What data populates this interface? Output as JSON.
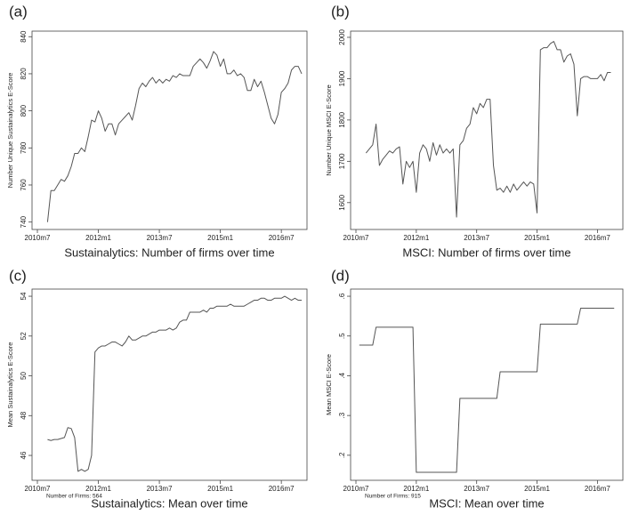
{
  "chart_data": [
    {
      "type": "line",
      "panel_label": "(a)",
      "title": "Sustainalytics: Number of firms over time",
      "y_label": "Number Unique Sustainalytics E-Score",
      "color": "#555555",
      "categories": [
        "2010m7",
        null,
        null,
        null,
        null,
        null,
        null,
        null,
        null,
        null,
        null,
        null,
        null,
        null,
        null,
        null,
        null,
        null,
        "2012m1",
        null,
        null,
        null,
        null,
        null,
        null,
        null,
        null,
        null,
        null,
        null,
        null,
        null,
        null,
        null,
        null,
        null,
        "2013m7",
        null,
        null,
        null,
        null,
        null,
        null,
        null,
        null,
        null,
        null,
        null,
        null,
        null,
        null,
        null,
        null,
        null,
        "2015m1",
        null,
        null,
        null,
        null,
        null,
        null,
        null,
        null,
        null,
        null,
        null,
        null,
        null,
        null,
        null,
        null,
        null,
        "2016m7",
        null,
        null,
        null,
        null,
        null,
        null
      ],
      "values": [
        null,
        null,
        null,
        740,
        757,
        757,
        760,
        763,
        762,
        765,
        770,
        777,
        777,
        780,
        778,
        786,
        795,
        794,
        800,
        796,
        789,
        793,
        793,
        787,
        793,
        795,
        797,
        799,
        795,
        803,
        812,
        815,
        813,
        816,
        818,
        815,
        817,
        815,
        817,
        816,
        819,
        818,
        820,
        819,
        819,
        819,
        824,
        826,
        828,
        826,
        823,
        827,
        832,
        830,
        824,
        828,
        820,
        820,
        822,
        819,
        820,
        818,
        811,
        811,
        817,
        813,
        816,
        810,
        803,
        796,
        793,
        798,
        810,
        812,
        815,
        822,
        824,
        824,
        820
      ],
      "ylim": [
        736,
        843
      ],
      "yticks": [
        740,
        760,
        780,
        800,
        820,
        840
      ]
    },
    {
      "type": "line",
      "panel_label": "(b)",
      "title": "MSCI: Number of firms over time",
      "y_label": "Number Unique MSCI E-Score",
      "color": "#555555",
      "categories": [
        "2010m7",
        null,
        null,
        null,
        null,
        null,
        null,
        null,
        null,
        null,
        null,
        null,
        null,
        null,
        null,
        null,
        null,
        null,
        "2012m1",
        null,
        null,
        null,
        null,
        null,
        null,
        null,
        null,
        null,
        null,
        null,
        null,
        null,
        null,
        null,
        null,
        null,
        "2013m7",
        null,
        null,
        null,
        null,
        null,
        null,
        null,
        null,
        null,
        null,
        null,
        null,
        null,
        null,
        null,
        null,
        null,
        "2015m1",
        null,
        null,
        null,
        null,
        null,
        null,
        null,
        null,
        null,
        null,
        null,
        null,
        null,
        null,
        null,
        null,
        null,
        "2016m7",
        null,
        null,
        null,
        null,
        null,
        null
      ],
      "values": [
        null,
        null,
        null,
        1720,
        1730,
        1740,
        1790,
        1690,
        1705,
        1715,
        1725,
        1720,
        1730,
        1735,
        1645,
        1700,
        1685,
        1700,
        1625,
        1720,
        1740,
        1730,
        1700,
        1745,
        1715,
        1740,
        1720,
        1730,
        1720,
        1730,
        1565,
        1740,
        1750,
        1780,
        1790,
        1830,
        1815,
        1840,
        1830,
        1850,
        1850,
        1690,
        1630,
        1635,
        1625,
        1640,
        1625,
        1645,
        1630,
        1640,
        1650,
        1640,
        1650,
        1645,
        1575,
        1970,
        1975,
        1975,
        1985,
        1990,
        1970,
        1970,
        1940,
        1955,
        1960,
        1935,
        1810,
        1900,
        1905,
        1905,
        1900,
        1900,
        1900,
        1910,
        1895,
        1915,
        1915,
        null,
        null
      ],
      "ylim": [
        1535,
        2015
      ],
      "yticks": [
        1600,
        1700,
        1800,
        1900,
        2000
      ]
    },
    {
      "type": "line",
      "panel_label": "(c)",
      "title": "Sustainalytics: Mean over time",
      "y_label": "Mean Sustainalytics E-Score",
      "note": "Number of Firms: 564",
      "color": "#555555",
      "categories": [
        "2010m7",
        null,
        null,
        null,
        null,
        null,
        null,
        null,
        null,
        null,
        null,
        null,
        null,
        null,
        null,
        null,
        null,
        null,
        "2012m1",
        null,
        null,
        null,
        null,
        null,
        null,
        null,
        null,
        null,
        null,
        null,
        null,
        null,
        null,
        null,
        null,
        null,
        "2013m7",
        null,
        null,
        null,
        null,
        null,
        null,
        null,
        null,
        null,
        null,
        null,
        null,
        null,
        null,
        null,
        null,
        null,
        "2015m1",
        null,
        null,
        null,
        null,
        null,
        null,
        null,
        null,
        null,
        null,
        null,
        null,
        null,
        null,
        null,
        null,
        null,
        "2016m7",
        null,
        null,
        null,
        null,
        null,
        null
      ],
      "values": [
        null,
        null,
        null,
        46.8,
        46.75,
        46.8,
        46.8,
        46.85,
        46.9,
        47.4,
        47.35,
        46.9,
        45.2,
        45.3,
        45.2,
        45.3,
        46.0,
        51.2,
        51.4,
        51.5,
        51.5,
        51.6,
        51.7,
        51.7,
        51.6,
        51.5,
        51.7,
        52.0,
        51.8,
        51.8,
        51.9,
        52.0,
        52.0,
        52.1,
        52.2,
        52.2,
        52.3,
        52.3,
        52.3,
        52.4,
        52.3,
        52.4,
        52.7,
        52.8,
        52.8,
        53.2,
        53.2,
        53.2,
        53.2,
        53.3,
        53.2,
        53.4,
        53.4,
        53.5,
        53.5,
        53.5,
        53.5,
        53.6,
        53.5,
        53.5,
        53.5,
        53.5,
        53.6,
        53.7,
        53.8,
        53.8,
        53.9,
        53.9,
        53.8,
        53.8,
        53.9,
        53.9,
        53.9,
        54.0,
        53.9,
        53.8,
        53.9,
        53.8,
        53.8
      ],
      "ylim": [
        44.75,
        54.36
      ],
      "yticks": [
        46,
        48,
        50,
        52,
        54
      ]
    },
    {
      "type": "line",
      "panel_label": "(d)",
      "title": "MSCI: Mean over time",
      "y_label": "Mean MSCI E-Score",
      "note": "Number of Firms: 915",
      "color": "#555555",
      "categories": [
        "2010m7",
        null,
        null,
        null,
        null,
        null,
        null,
        null,
        null,
        null,
        null,
        null,
        null,
        null,
        null,
        null,
        null,
        null,
        "2012m1",
        null,
        null,
        null,
        null,
        null,
        null,
        null,
        null,
        null,
        null,
        null,
        null,
        null,
        null,
        null,
        null,
        null,
        "2013m7",
        null,
        null,
        null,
        null,
        null,
        null,
        null,
        null,
        null,
        null,
        null,
        null,
        null,
        null,
        null,
        null,
        null,
        "2015m1",
        null,
        null,
        null,
        null,
        null,
        null,
        null,
        null,
        null,
        null,
        null,
        null,
        null,
        null,
        null,
        null,
        null,
        "2016m7",
        null,
        null,
        null,
        null,
        null,
        null
      ],
      "values": [
        null,
        0.477,
        0.477,
        0.477,
        0.477,
        0.477,
        0.522,
        0.522,
        0.522,
        0.522,
        0.522,
        0.522,
        0.522,
        0.522,
        0.522,
        0.522,
        0.522,
        0.522,
        0.157,
        0.157,
        0.157,
        0.157,
        0.157,
        0.157,
        0.157,
        0.157,
        0.157,
        0.157,
        0.157,
        0.157,
        0.157,
        0.343,
        0.343,
        0.343,
        0.343,
        0.343,
        0.343,
        0.343,
        0.343,
        0.343,
        0.343,
        0.343,
        0.343,
        0.41,
        0.41,
        0.41,
        0.41,
        0.41,
        0.41,
        0.41,
        0.41,
        0.41,
        0.41,
        0.41,
        0.41,
        0.53,
        0.53,
        0.53,
        0.53,
        0.53,
        0.53,
        0.53,
        0.53,
        0.53,
        0.53,
        0.53,
        0.53,
        0.57,
        0.57,
        0.57,
        0.57,
        0.57,
        0.57,
        0.57,
        0.57,
        0.57,
        0.57,
        0.57,
        null
      ],
      "ylim": [
        0.137,
        0.618
      ],
      "yticks": [
        {
          "value": 0.2,
          "label": ".2"
        },
        {
          "value": 0.3,
          "label": ".3"
        },
        {
          "value": 0.4,
          "label": ".4"
        },
        {
          "value": 0.5,
          "label": ".5"
        },
        {
          "value": 0.6,
          "label": ".6"
        }
      ]
    }
  ]
}
